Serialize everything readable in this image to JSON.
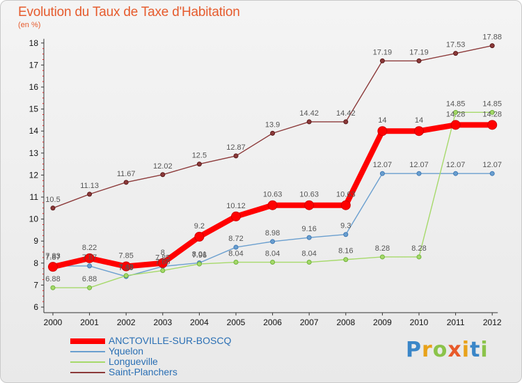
{
  "title": "Evolution du Taux de Taxe d'Habitation",
  "unit_label": "(en %)",
  "logo": {
    "letters": [
      "P",
      "r",
      "o",
      "x",
      "i",
      "t",
      "i"
    ],
    "colors": [
      "#3a86c8",
      "#e8a21a",
      "#8bc34a",
      "#e85a2a",
      "#e8a21a",
      "#3a86c8",
      "#8bc34a"
    ]
  },
  "chart_data": {
    "type": "line",
    "title": "Evolution du Taux de Taxe d'Habitation",
    "ylabel": "(en %)",
    "xlabel": "",
    "categories": [
      "2000",
      "2001",
      "2002",
      "2003",
      "2004",
      "2005",
      "2006",
      "2007",
      "2008",
      "2009",
      "2010",
      "2011",
      "2012"
    ],
    "ylim": [
      6,
      18
    ],
    "yticks": [
      "6",
      "7",
      "8",
      "9",
      "10",
      "11",
      "12",
      "13",
      "14",
      "15",
      "16",
      "17",
      "18"
    ],
    "grid": false,
    "legend_position": "bottom-left",
    "series": [
      {
        "name": "ANCTOVILLE-SUR-BOSCQ",
        "color": "#ff0000",
        "width": 8,
        "values": [
          7.83,
          8.22,
          7.85,
          8.0,
          9.2,
          10.12,
          10.63,
          10.63,
          10.63,
          14.0,
          14.0,
          14.28,
          14.28
        ],
        "labels": [
          "7.83",
          "8.22",
          "7.85",
          "8",
          "9.2",
          "10.12",
          "10.63",
          "10.63",
          "10.63",
          "14",
          "14",
          "14.28",
          "14.28"
        ]
      },
      {
        "name": "Yquelon",
        "color": "#6a9fcf",
        "width": 1.4,
        "values": [
          7.87,
          7.87,
          7.39,
          7.85,
          8.01,
          8.72,
          8.98,
          9.16,
          9.3,
          12.07,
          12.07,
          12.07,
          12.07
        ],
        "labels": [
          "7.87",
          "7.87",
          "7.39",
          "7.85",
          "8.01",
          "8.72",
          "8.98",
          "9.16",
          "9.3",
          "12.07",
          "12.07",
          "12.07",
          "12.07"
        ]
      },
      {
        "name": "Longueville",
        "color": "#a6d96a",
        "width": 1.4,
        "values": [
          6.88,
          6.88,
          7.43,
          7.66,
          7.96,
          8.04,
          8.04,
          8.04,
          8.16,
          8.28,
          8.28,
          14.85,
          14.85
        ],
        "labels": [
          "6.88",
          "6.88",
          "7.43",
          "7.66",
          "7.96",
          "8.04",
          "8.04",
          "8.04",
          "8.16",
          "8.28",
          "8.28",
          "14.85",
          "14.85"
        ]
      },
      {
        "name": "Saint-Planchers",
        "color": "#8c3a3a",
        "width": 1.4,
        "values": [
          10.5,
          11.13,
          11.67,
          12.02,
          12.5,
          12.87,
          13.9,
          14.42,
          14.42,
          17.19,
          17.19,
          17.53,
          17.88
        ],
        "labels": [
          "10.5",
          "11.13",
          "11.67",
          "12.02",
          "12.5",
          "12.87",
          "13.9",
          "14.42",
          "14.42",
          "17.19",
          "17.19",
          "17.53",
          "17.88"
        ]
      }
    ]
  }
}
